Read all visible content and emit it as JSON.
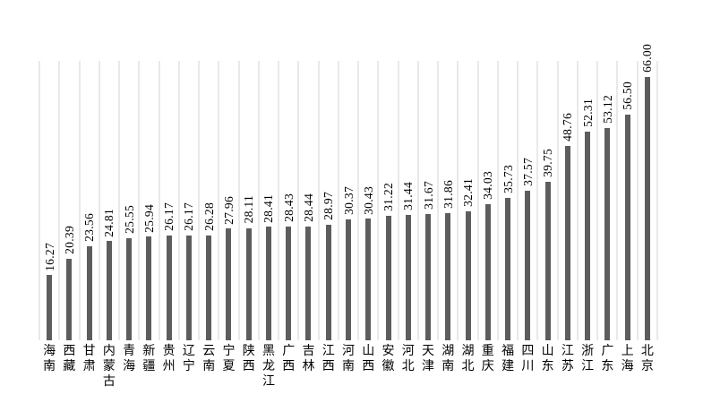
{
  "chart_data": {
    "type": "bar",
    "title": "",
    "xlabel": "",
    "ylabel": "",
    "legend": "none",
    "orientation": "vertical",
    "ylim": [
      0,
      70
    ],
    "grid": "vertical-category-separator-lines-only",
    "y_axis_tick_labels": "none",
    "value_label_style": "rotated-90-above-bar",
    "category_label_style": "stacked-vertical-cjk",
    "bar_color": "#5d5d5d",
    "gridline_color": "#e9e9e9",
    "text_color": "#000000",
    "background_color": "#ffffff",
    "categories": [
      "海南",
      "西藏",
      "甘肃",
      "内蒙古",
      "青海",
      "新疆",
      "贵州",
      "辽宁",
      "云南",
      "宁夏",
      "陕西",
      "黑龙江",
      "广西",
      "吉林",
      "江西",
      "河南",
      "山西",
      "安徽",
      "河北",
      "天津",
      "湖南",
      "湖北",
      "重庆",
      "福建",
      "四川",
      "山东",
      "江苏",
      "浙江",
      "广东",
      "上海",
      "北京"
    ],
    "values": [
      16.27,
      20.39,
      23.56,
      24.81,
      25.55,
      25.94,
      26.17,
      26.17,
      26.28,
      27.96,
      28.11,
      28.41,
      28.43,
      28.44,
      28.97,
      30.37,
      30.43,
      31.22,
      31.44,
      31.67,
      31.86,
      32.41,
      34.03,
      35.73,
      37.57,
      39.75,
      48.76,
      52.31,
      53.12,
      56.5,
      66.0
    ],
    "value_labels": [
      "16.27",
      "20.39",
      "23.56",
      "24.81",
      "25.55",
      "25.94",
      "26.17",
      "26.17",
      "26.28",
      "27.96",
      "28.11",
      "28.41",
      "28.43",
      "28.44",
      "28.97",
      "30.37",
      "30.43",
      "31.22",
      "31.44",
      "31.67",
      "31.86",
      "32.41",
      "34.03",
      "35.73",
      "37.57",
      "39.75",
      "48.76",
      "52.31",
      "53.12",
      "56.50",
      "66.00"
    ]
  }
}
